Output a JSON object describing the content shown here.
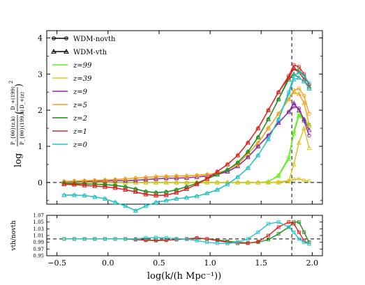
{
  "chart_data": [
    {
      "type": "line",
      "panel": "top",
      "ylim": [
        -0.6,
        4.2
      ],
      "xlim": [
        -0.6,
        2.1
      ],
      "y_ticks": [
        "0",
        "1",
        "2",
        "3",
        "4"
      ],
      "ylabel_main": "log",
      "ylabel_ratio_top": "P_{θθ}(z,k)",
      "ylabel_ratio_bottom": "P_{θθ}(199,k)",
      "ylabel_growth_top": "D_+(199)",
      "ylabel_growth_bottom": "D_+(z)",
      "ylabel_exponent": "2",
      "vline_x": 1.8,
      "hline_y": 0,
      "legend": [
        {
          "label": "WDM-novth",
          "marker": "circle",
          "color": "#000000"
        },
        {
          "label": "WDM-vth",
          "marker": "triangle",
          "color": "#000000"
        },
        {
          "label": "z=99",
          "color": "#66ee22"
        },
        {
          "label": "z=39",
          "color": "#d6c21a"
        },
        {
          "label": "z=9",
          "color": "#8a2a9c"
        },
        {
          "label": "z=5",
          "color": "#f3a11a"
        },
        {
          "label": "z=2",
          "color": "#1e8c1e"
        },
        {
          "label": "z=1",
          "color": "#e02222"
        },
        {
          "label": "z=0",
          "color": "#22c3c8"
        }
      ],
      "x": [
        -0.43,
        -0.33,
        -0.23,
        -0.13,
        -0.03,
        0.07,
        0.17,
        0.27,
        0.37,
        0.47,
        0.57,
        0.67,
        0.77,
        0.87,
        0.97,
        1.07,
        1.17,
        1.27,
        1.37,
        1.47,
        1.57,
        1.67,
        1.77,
        1.82,
        1.87,
        1.92,
        1.97
      ],
      "series": [
        {
          "name": "z=99",
          "color": "#66ee22",
          "novth": [
            0,
            0,
            0,
            0,
            0,
            0,
            0,
            0,
            0,
            0,
            0,
            0,
            0,
            0,
            0,
            0,
            0,
            0,
            0,
            0,
            0.02,
            0.2,
            0.7,
            1.4,
            1.9,
            1.75,
            1.6
          ],
          "vth": [
            0,
            0,
            0,
            0,
            0,
            0,
            0,
            0,
            0,
            0,
            0,
            0,
            0,
            0,
            0,
            0,
            0,
            0,
            0,
            0,
            0.02,
            0.18,
            0.65,
            1.35,
            1.85,
            1.7,
            1.55
          ]
        },
        {
          "name": "z=39",
          "color": "#d6c21a",
          "novth": [
            0,
            0,
            0,
            0,
            0,
            0,
            0,
            0,
            0,
            0,
            0,
            0,
            0,
            0,
            0,
            0,
            0,
            0,
            0,
            0,
            0,
            0.02,
            0.05,
            0.08,
            0.1,
            0.06,
            0.04
          ],
          "vth": [
            0,
            0,
            0,
            0,
            0,
            0,
            0,
            0,
            0,
            0,
            0,
            0,
            0,
            0,
            0,
            0,
            0,
            0,
            0,
            0,
            0,
            0,
            0.03,
            0.5,
            1.1,
            1.5,
            0.95
          ]
        },
        {
          "name": "z=9",
          "color": "#8a2a9c",
          "novth": [
            0.02,
            0.02,
            0.03,
            0.03,
            0.04,
            0.05,
            0.05,
            0.06,
            0.08,
            0.1,
            0.12,
            0.12,
            0.13,
            0.15,
            0.18,
            0.22,
            0.3,
            0.45,
            0.7,
            1.0,
            1.3,
            1.65,
            1.95,
            2.1,
            2.05,
            1.7,
            1.3
          ],
          "vth": [
            0.02,
            0.02,
            0.03,
            0.03,
            0.04,
            0.05,
            0.05,
            0.06,
            0.08,
            0.1,
            0.12,
            0.12,
            0.13,
            0.15,
            0.18,
            0.22,
            0.3,
            0.45,
            0.7,
            1.0,
            1.3,
            1.65,
            1.95,
            2.2,
            2.0,
            1.75,
            1.45
          ]
        },
        {
          "name": "z=5",
          "color": "#f3a11a",
          "novth": [
            0.03,
            0.04,
            0.05,
            0.06,
            0.07,
            0.08,
            0.1,
            0.12,
            0.14,
            0.16,
            0.17,
            0.18,
            0.18,
            0.2,
            0.22,
            0.26,
            0.35,
            0.5,
            0.8,
            1.1,
            1.5,
            1.9,
            2.3,
            2.55,
            2.6,
            2.4,
            1.9
          ],
          "vth": [
            0.03,
            0.04,
            0.05,
            0.06,
            0.07,
            0.08,
            0.1,
            0.12,
            0.14,
            0.16,
            0.17,
            0.18,
            0.18,
            0.2,
            0.22,
            0.26,
            0.35,
            0.5,
            0.8,
            1.1,
            1.5,
            1.9,
            2.3,
            2.5,
            2.45,
            2.2,
            1.6
          ]
        },
        {
          "name": "z=2",
          "color": "#1e8c1e",
          "novth": [
            -0.02,
            -0.03,
            -0.04,
            -0.05,
            -0.06,
            -0.08,
            -0.12,
            -0.18,
            -0.25,
            -0.28,
            -0.26,
            -0.2,
            -0.12,
            -0.02,
            0.1,
            0.22,
            0.35,
            0.55,
            0.85,
            1.25,
            1.75,
            2.3,
            2.9,
            3.15,
            3.1,
            2.95,
            2.7
          ],
          "vth": [
            -0.02,
            -0.03,
            -0.04,
            -0.05,
            -0.06,
            -0.08,
            -0.12,
            -0.18,
            -0.25,
            -0.28,
            -0.26,
            -0.2,
            -0.12,
            -0.02,
            0.1,
            0.22,
            0.35,
            0.55,
            0.85,
            1.25,
            1.75,
            2.3,
            2.85,
            3.0,
            2.9,
            2.8,
            2.65
          ]
        },
        {
          "name": "z=1",
          "color": "#e02222",
          "novth": [
            -0.05,
            -0.06,
            -0.08,
            -0.1,
            -0.12,
            -0.15,
            -0.2,
            -0.26,
            -0.33,
            -0.36,
            -0.35,
            -0.28,
            -0.18,
            -0.05,
            0.1,
            0.3,
            0.5,
            0.75,
            1.1,
            1.5,
            2.0,
            2.5,
            2.95,
            3.25,
            3.2,
            3.0,
            2.7
          ],
          "vth": [
            -0.05,
            -0.06,
            -0.08,
            -0.1,
            -0.12,
            -0.15,
            -0.2,
            -0.26,
            -0.33,
            -0.36,
            -0.35,
            -0.28,
            -0.18,
            -0.05,
            0.1,
            0.3,
            0.5,
            0.75,
            1.1,
            1.5,
            2.0,
            2.5,
            2.9,
            3.15,
            3.05,
            2.85,
            2.6
          ]
        },
        {
          "name": "z=0",
          "color": "#22c3c8",
          "novth": [
            -0.35,
            -0.35,
            -0.36,
            -0.4,
            -0.45,
            -0.55,
            -0.65,
            -0.78,
            -0.65,
            -0.55,
            -0.5,
            -0.45,
            -0.42,
            -0.38,
            -0.3,
            -0.2,
            -0.05,
            0.15,
            0.4,
            0.75,
            1.2,
            1.75,
            2.5,
            2.95,
            3.05,
            2.95,
            2.75
          ],
          "vth": [
            -0.35,
            -0.35,
            -0.36,
            -0.4,
            -0.45,
            -0.55,
            -0.65,
            -0.78,
            -0.65,
            -0.55,
            -0.5,
            -0.45,
            -0.42,
            -0.38,
            -0.3,
            -0.2,
            -0.05,
            0.15,
            0.4,
            0.75,
            1.2,
            1.75,
            2.45,
            2.85,
            2.9,
            2.8,
            2.6
          ]
        }
      ]
    },
    {
      "type": "line",
      "panel": "bottom",
      "ylim": [
        0.95,
        1.07
      ],
      "xlim": [
        -0.6,
        2.1
      ],
      "y_ticks": [
        "0.95",
        "0.97",
        "0.99",
        "1.01",
        "1.03",
        "1.05",
        "1.07"
      ],
      "x_ticks": [
        "−0.5",
        "0.0",
        "0.5",
        "1.0",
        "1.5",
        "2.0"
      ],
      "ylabel": "vth/novth",
      "xlabel": "log(k/(h Mpc⁻¹))",
      "vline_x": 1.8,
      "hline_y": 1.0,
      "x": [
        -0.43,
        -0.33,
        -0.23,
        -0.13,
        -0.03,
        0.07,
        0.17,
        0.27,
        0.37,
        0.47,
        0.57,
        0.67,
        0.77,
        0.87,
        0.97,
        1.07,
        1.17,
        1.27,
        1.37,
        1.47,
        1.57,
        1.67,
        1.77,
        1.82,
        1.87,
        1.92,
        1.97
      ],
      "series": [
        {
          "name": "z=2",
          "color": "#1e8c1e",
          "values": [
            1.0,
            1.0,
            1.0,
            1.0,
            1.0,
            1.0,
            1.0,
            0.998,
            0.997,
            0.996,
            0.997,
            0.998,
            1.0,
            1.002,
            1.0,
            0.997,
            0.993,
            0.99,
            0.988,
            0.99,
            0.998,
            1.015,
            1.035,
            1.05,
            1.05,
            1.02,
            0.99
          ]
        },
        {
          "name": "z=1",
          "color": "#e02222",
          "values": [
            1.0,
            1.0,
            1.0,
            1.0,
            1.0,
            1.0,
            1.0,
            0.998,
            0.996,
            0.995,
            0.996,
            0.998,
            1.0,
            1.003,
            1.0,
            0.995,
            0.99,
            0.987,
            0.987,
            0.992,
            1.01,
            1.035,
            1.05,
            1.045,
            1.02,
            0.995,
            0.985
          ]
        },
        {
          "name": "z=0",
          "color": "#22c3c8",
          "values": [
            1.0,
            1.0,
            1.0,
            1.0,
            1.0,
            1.0,
            1.0,
            1.0,
            1.003,
            1.004,
            1.003,
            1.001,
            0.999,
            0.995,
            0.99,
            0.987,
            0.986,
            0.99,
            1.0,
            1.02,
            1.045,
            1.05,
            1.035,
            1.02,
            1.0,
            0.99,
            0.985
          ]
        }
      ]
    }
  ]
}
